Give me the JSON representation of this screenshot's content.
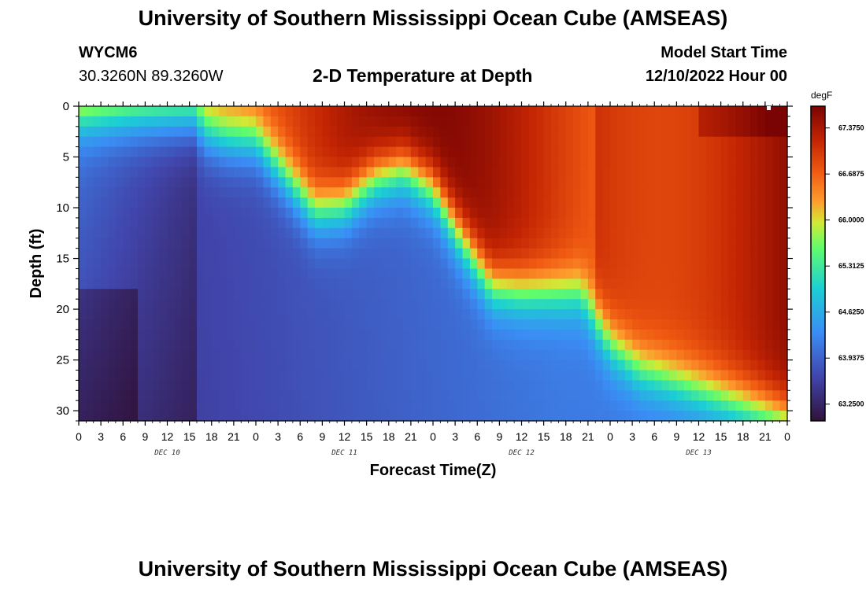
{
  "page_title": "University of Southern Mississippi Ocean Cube (AMSEAS)",
  "station": {
    "id": "WYCM6",
    "coords": "30.3260N  89.3260W"
  },
  "model_start": {
    "label": "Model Start Time",
    "value": "12/10/2022 Hour 00"
  },
  "chart_data": {
    "type": "heatmap",
    "title": "2-D Temperature at Depth",
    "xlabel": "Forecast Time(Z)",
    "ylabel": "Depth (ft)",
    "x_range_hours": [
      0,
      96
    ],
    "y_range_ft": [
      0,
      31
    ],
    "y_ticks": [
      "0",
      "5",
      "10",
      "15",
      "20",
      "25",
      "30"
    ],
    "y_tick_values": [
      0,
      5,
      10,
      15,
      20,
      25,
      30
    ],
    "x_tick_labels": [
      "0",
      "3",
      "6",
      "9",
      "12",
      "15",
      "18",
      "21",
      "0",
      "3",
      "6",
      "9",
      "12",
      "15",
      "18",
      "21",
      "0",
      "3",
      "6",
      "9",
      "12",
      "15",
      "18",
      "21",
      "0",
      "3",
      "6",
      "9",
      "12",
      "15",
      "18",
      "21",
      "0"
    ],
    "day_labels": [
      "DEC 10",
      "DEC 11",
      "DEC 12",
      "DEC 13"
    ],
    "day_label_hours": [
      12,
      36,
      60,
      84
    ],
    "colorbar": {
      "unit": "degF",
      "min": 63.0,
      "max": 67.7,
      "tick_labels": [
        "67.3750",
        "66.6875",
        "66.0000",
        "65.3125",
        "64.6250",
        "63.9375",
        "63.2500"
      ],
      "tick_values": [
        67.375,
        66.6875,
        66.0,
        65.3125,
        64.625,
        63.9375,
        63.25
      ]
    },
    "thermocline_hours": [
      0,
      8,
      16,
      17,
      20,
      24,
      28,
      32,
      36,
      40,
      44,
      48,
      52,
      56,
      60,
      64,
      68,
      72,
      76,
      80,
      84,
      88,
      92,
      96
    ],
    "thermocline_depth_ft": [
      0.3,
      0.3,
      0.5,
      2.0,
      2.8,
      3.0,
      6.5,
      10.0,
      9.5,
      7.0,
      6.0,
      8.0,
      13.0,
      17.5,
      18.0,
      18.0,
      18.0,
      23.0,
      25.5,
      26.5,
      27.5,
      28.5,
      29.5,
      30.5
    ]
  },
  "repeat_title": "University of Southern Mississippi Ocean Cube (AMSEAS)"
}
